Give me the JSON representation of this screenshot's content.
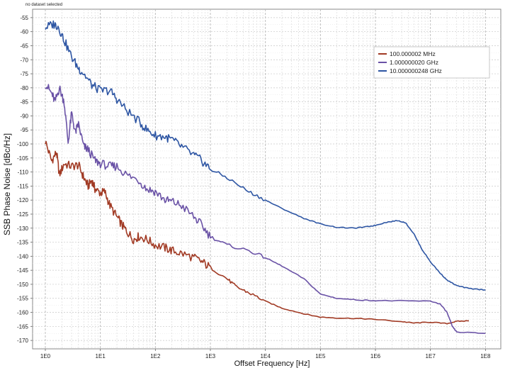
{
  "status_text": "no dataset selected",
  "chart_data": {
    "type": "line",
    "title": "",
    "xlabel": "Offset Frequency [Hz]",
    "ylabel": "SSB Phase Noise [dBc/Hz]",
    "x_scale": "log",
    "xlim": [
      1,
      100000000
    ],
    "ylim": [
      -173,
      -52
    ],
    "grid": true,
    "legend_position": "top-right",
    "x_ticks": [
      {
        "value": 1,
        "label": "1E0"
      },
      {
        "value": 10,
        "label": "1E1"
      },
      {
        "value": 100,
        "label": "1E2"
      },
      {
        "value": 1000,
        "label": "1E3"
      },
      {
        "value": 10000,
        "label": "1E4"
      },
      {
        "value": 100000,
        "label": "1E5"
      },
      {
        "value": 1000000,
        "label": "1E6"
      },
      {
        "value": 10000000,
        "label": "1E7"
      },
      {
        "value": 100000000,
        "label": "1E8"
      }
    ],
    "y_ticks": [
      {
        "value": -55,
        "label": "-55"
      },
      {
        "value": -60,
        "label": "-60"
      },
      {
        "value": -65,
        "label": "-65"
      },
      {
        "value": -70,
        "label": "-70"
      },
      {
        "value": -75,
        "label": "-75"
      },
      {
        "value": -80,
        "label": "-80"
      },
      {
        "value": -85,
        "label": "-85"
      },
      {
        "value": -90,
        "label": "-90"
      },
      {
        "value": -95,
        "label": "-95"
      },
      {
        "value": -100,
        "label": "-100"
      },
      {
        "value": -105,
        "label": "-105"
      },
      {
        "value": -110,
        "label": "-110"
      },
      {
        "value": -115,
        "label": "-115"
      },
      {
        "value": -120,
        "label": "-120"
      },
      {
        "value": -125,
        "label": "-125"
      },
      {
        "value": -130,
        "label": "-130"
      },
      {
        "value": -135,
        "label": "-135"
      },
      {
        "value": -140,
        "label": "-140"
      },
      {
        "value": -145,
        "label": "-145"
      },
      {
        "value": -150,
        "label": "-150"
      },
      {
        "value": -155,
        "label": "-155"
      },
      {
        "value": -160,
        "label": "-160"
      },
      {
        "value": -165,
        "label": "-165"
      },
      {
        "value": -170,
        "label": "-170"
      }
    ],
    "series": [
      {
        "name": "100.000002 MHz",
        "color": "#a13a24",
        "points": [
          [
            1,
            -99
          ],
          [
            1.3,
            -106
          ],
          [
            1.6,
            -103
          ],
          [
            1.8,
            -111
          ],
          [
            2.2,
            -107
          ],
          [
            3,
            -108
          ],
          [
            4,
            -107.5
          ],
          [
            5,
            -112
          ],
          [
            6,
            -115
          ],
          [
            7,
            -113
          ],
          [
            8,
            -116
          ],
          [
            10,
            -117.5
          ],
          [
            12,
            -117
          ],
          [
            15,
            -122
          ],
          [
            20,
            -126
          ],
          [
            25,
            -129
          ],
          [
            30,
            -131
          ],
          [
            40,
            -134
          ],
          [
            50,
            -133
          ],
          [
            70,
            -134
          ],
          [
            100,
            -136
          ],
          [
            150,
            -137
          ],
          [
            200,
            -138
          ],
          [
            300,
            -139
          ],
          [
            500,
            -140.5
          ],
          [
            700,
            -142
          ],
          [
            1000,
            -144
          ],
          [
            2000,
            -148
          ],
          [
            3000,
            -151
          ],
          [
            5000,
            -153
          ],
          [
            10000,
            -156
          ],
          [
            20000,
            -158.5
          ],
          [
            50000,
            -160.5
          ],
          [
            100000,
            -161.7
          ],
          [
            200000,
            -162
          ],
          [
            500000,
            -162.2
          ],
          [
            1000000,
            -162.5
          ],
          [
            3000000,
            -163.3
          ],
          [
            5000000,
            -163.8
          ],
          [
            10000000,
            -163.5
          ],
          [
            20000000,
            -164
          ],
          [
            30000000,
            -163.2
          ],
          [
            50000000,
            -163
          ]
        ]
      },
      {
        "name": "1.000000020 GHz",
        "color": "#6a52a6",
        "points": [
          [
            1,
            -78.5
          ],
          [
            1.3,
            -82
          ],
          [
            1.5,
            -85
          ],
          [
            1.8,
            -80
          ],
          [
            2.2,
            -85
          ],
          [
            2.6,
            -99.5
          ],
          [
            3,
            -89
          ],
          [
            3.5,
            -96
          ],
          [
            4,
            -93
          ],
          [
            5,
            -101
          ],
          [
            6,
            -102
          ],
          [
            8,
            -106
          ],
          [
            10,
            -107
          ],
          [
            15,
            -108
          ],
          [
            20,
            -108
          ],
          [
            30,
            -111
          ],
          [
            50,
            -113
          ],
          [
            70,
            -116
          ],
          [
            100,
            -117
          ],
          [
            150,
            -120
          ],
          [
            200,
            -120.5
          ],
          [
            300,
            -122
          ],
          [
            500,
            -126
          ],
          [
            700,
            -129
          ],
          [
            1000,
            -133
          ],
          [
            2000,
            -136
          ],
          [
            5000,
            -138
          ],
          [
            10000,
            -140.5
          ],
          [
            20000,
            -143.5
          ],
          [
            50000,
            -148
          ],
          [
            100000,
            -153.5
          ],
          [
            200000,
            -155
          ],
          [
            500000,
            -155.6
          ],
          [
            1000000,
            -155.8
          ],
          [
            3000000,
            -155.9
          ],
          [
            10000000,
            -156
          ],
          [
            15000000,
            -157
          ],
          [
            20000000,
            -160
          ],
          [
            25000000,
            -165
          ],
          [
            30000000,
            -167
          ],
          [
            100000000,
            -167.5
          ]
        ]
      },
      {
        "name": "10.000000248 GHz",
        "color": "#2d55a3",
        "points": [
          [
            1,
            -58.5
          ],
          [
            1.4,
            -57.3
          ],
          [
            1.7,
            -58
          ],
          [
            2.2,
            -63
          ],
          [
            3,
            -69
          ],
          [
            4,
            -73
          ],
          [
            5,
            -75
          ],
          [
            7,
            -79
          ],
          [
            10,
            -81
          ],
          [
            15,
            -81
          ],
          [
            20,
            -84
          ],
          [
            30,
            -88
          ],
          [
            50,
            -92
          ],
          [
            70,
            -95
          ],
          [
            100,
            -97
          ],
          [
            150,
            -97.5
          ],
          [
            200,
            -98.5
          ],
          [
            300,
            -101
          ],
          [
            500,
            -104
          ],
          [
            700,
            -106
          ],
          [
            1000,
            -109
          ],
          [
            2000,
            -112
          ],
          [
            5000,
            -117
          ],
          [
            10000,
            -120
          ],
          [
            20000,
            -123
          ],
          [
            50000,
            -126.5
          ],
          [
            100000,
            -128.5
          ],
          [
            200000,
            -129.7
          ],
          [
            400000,
            -130
          ],
          [
            700000,
            -129.5
          ],
          [
            1000000,
            -129
          ],
          [
            1500000,
            -128
          ],
          [
            2500000,
            -127.3
          ],
          [
            3500000,
            -128
          ],
          [
            5000000,
            -132
          ],
          [
            7000000,
            -137.5
          ],
          [
            10000000,
            -142
          ],
          [
            15000000,
            -146
          ],
          [
            20000000,
            -148.5
          ],
          [
            30000000,
            -150.5
          ],
          [
            50000000,
            -151.5
          ],
          [
            100000000,
            -152
          ]
        ]
      }
    ]
  }
}
